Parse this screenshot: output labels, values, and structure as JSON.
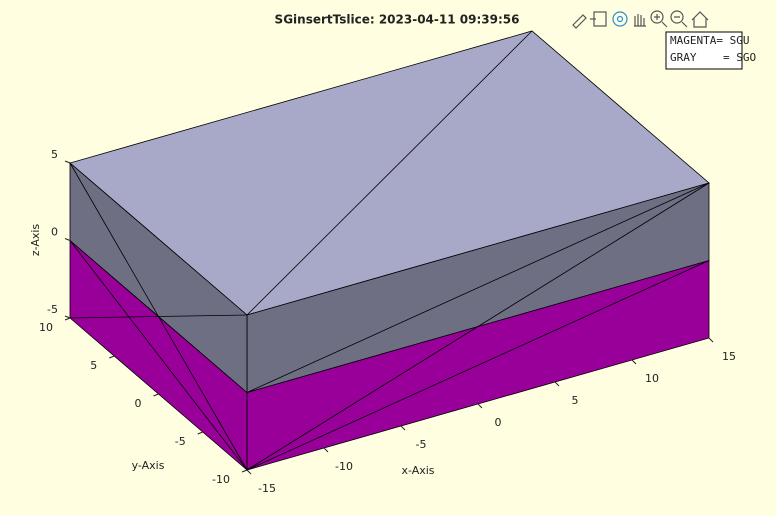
{
  "chart_data": {
    "type": "box3d",
    "title": "SGinsertTslice: 2023-04-11 09:39:56",
    "xlabel": "x-Axis",
    "ylabel": "y-Axis",
    "zlabel": "z-Axis",
    "xlim": [
      -15,
      15
    ],
    "ylim": [
      -10,
      10
    ],
    "zlim": [
      -5,
      5
    ],
    "xticks": [
      -15,
      -10,
      -5,
      0,
      5,
      10,
      15
    ],
    "yticks": [
      -10,
      -5,
      0,
      5,
      10
    ],
    "zticks": [
      -5,
      0,
      5
    ],
    "top_color": "#a8a9c9",
    "layers": [
      {
        "zrange": [
          -5,
          0
        ],
        "color": "#990099"
      },
      {
        "zrange": [
          0,
          5
        ],
        "color": "#6e6f83"
      }
    ],
    "legend": [
      "MAGENTA= SGU",
      "GRAY    = SGO"
    ]
  }
}
